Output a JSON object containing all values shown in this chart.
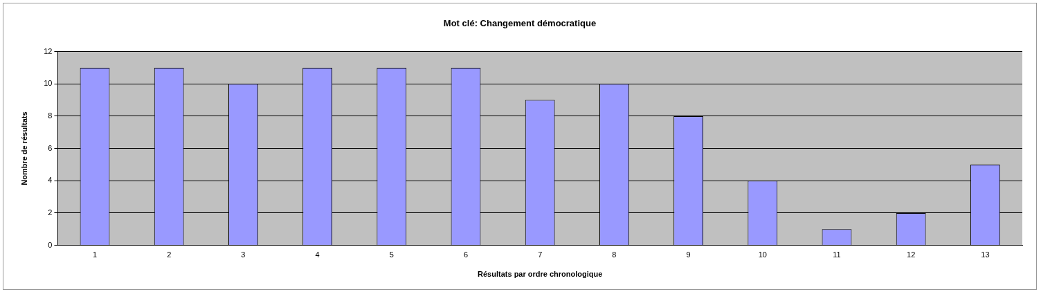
{
  "chart_data": {
    "type": "bar",
    "title": "Mot clé: Changement démocratique",
    "xlabel": "Résultats par ordre chronologique",
    "ylabel": "Nombre de résultats",
    "categories": [
      "1",
      "2",
      "3",
      "4",
      "5",
      "6",
      "7",
      "8",
      "9",
      "10",
      "11",
      "12",
      "13"
    ],
    "values": [
      11,
      11,
      10,
      11,
      11,
      11,
      9,
      10,
      8,
      4,
      1,
      2,
      5
    ],
    "color": "#9999ff",
    "ylim": [
      0,
      12
    ],
    "yticks": [
      0,
      2,
      4,
      6,
      8,
      10,
      12
    ],
    "grid": "y",
    "legend": false
  }
}
